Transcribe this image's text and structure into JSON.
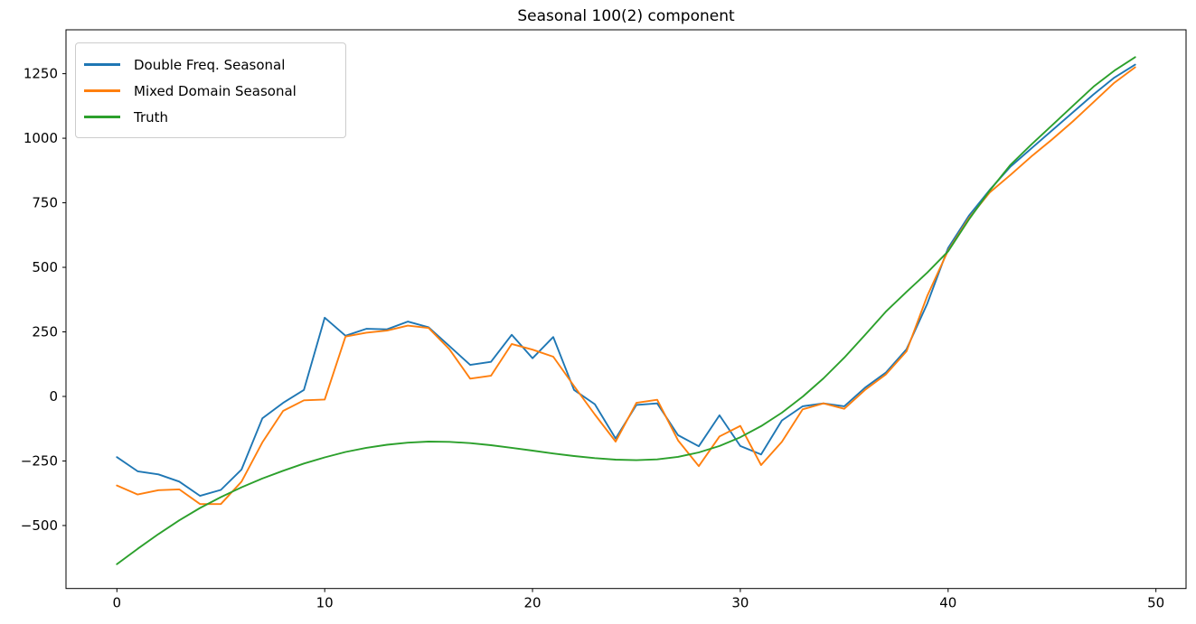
{
  "title": "Seasonal 100(2) component",
  "chart_data": {
    "type": "line",
    "title": "Seasonal 100(2) component",
    "xlabel": "",
    "ylabel": "",
    "grid": false,
    "legend_position": "upper left",
    "xlim": [
      -2.45,
      51.45
    ],
    "ylim": [
      -744,
      1420
    ],
    "xticks": [
      0,
      10,
      20,
      30,
      40,
      50
    ],
    "yticks": [
      -500,
      -250,
      0,
      250,
      500,
      750,
      1000,
      1250
    ],
    "x": [
      0,
      1,
      2,
      3,
      4,
      5,
      6,
      7,
      8,
      9,
      10,
      11,
      12,
      13,
      14,
      15,
      16,
      17,
      18,
      19,
      20,
      21,
      22,
      23,
      24,
      25,
      26,
      27,
      28,
      29,
      30,
      31,
      32,
      33,
      34,
      35,
      36,
      37,
      38,
      39,
      40,
      41,
      42,
      43,
      44,
      45,
      46,
      47,
      48,
      49
    ],
    "series": [
      {
        "name": "Double Freq. Seasonal",
        "color": "#1f77b4",
        "values": [
          -235,
          -290,
          -302,
          -330,
          -385,
          -362,
          -283,
          -85,
          -25,
          25,
          305,
          235,
          262,
          260,
          290,
          268,
          195,
          122,
          134,
          239,
          148,
          230,
          25,
          -30,
          -163,
          -33,
          -27,
          -150,
          -193,
          -73,
          -192,
          -225,
          -93,
          -38,
          -27,
          -38,
          34,
          92,
          183,
          360,
          575,
          700,
          800,
          890,
          960,
          1030,
          1100,
          1170,
          1235,
          1285
        ]
      },
      {
        "name": "Mixed Domain Seasonal",
        "color": "#ff7f0e",
        "values": [
          -345,
          -380,
          -363,
          -360,
          -417,
          -417,
          -330,
          -178,
          -56,
          -15,
          -12,
          232,
          247,
          255,
          274,
          265,
          183,
          69,
          80,
          203,
          181,
          154,
          40,
          -70,
          -175,
          -25,
          -13,
          -170,
          -270,
          -155,
          -114,
          -266,
          -176,
          -50,
          -27,
          -48,
          25,
          85,
          175,
          390,
          565,
          690,
          790,
          858,
          929,
          995,
          1065,
          1140,
          1215,
          1275
        ]
      },
      {
        "name": "Truth",
        "color": "#2ca02c",
        "values": [
          -650,
          -590,
          -533,
          -480,
          -432,
          -390,
          -352,
          -318,
          -288,
          -260,
          -236,
          -215,
          -199,
          -187,
          -179,
          -175,
          -176,
          -181,
          -189,
          -199,
          -210,
          -221,
          -231,
          -239,
          -245,
          -247,
          -244,
          -234,
          -217,
          -192,
          -158,
          -115,
          -63,
          -1,
          70,
          150,
          238,
          328,
          405,
          480,
          562,
          685,
          797,
          897,
          975,
          1050,
          1125,
          1200,
          1262,
          1314
        ]
      }
    ]
  }
}
